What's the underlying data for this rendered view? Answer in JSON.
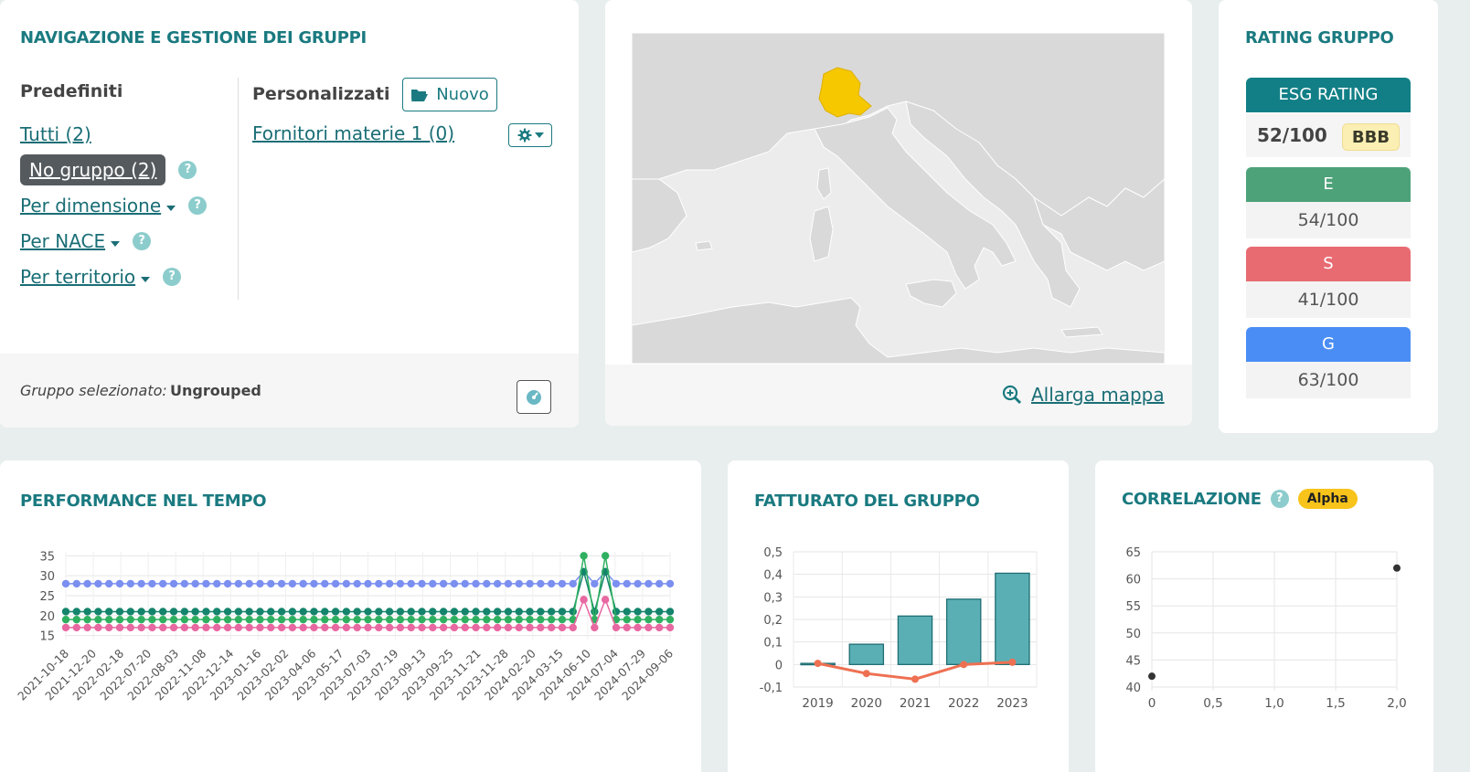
{
  "nav": {
    "title": "NAVIGAZIONE E GESTIONE DEI GRUPPI",
    "predefiniti_label": "Predefiniti",
    "personalizzati_label": "Personalizzati",
    "new_button_label": "Nuovo",
    "items": [
      {
        "label": "Tutti (2)"
      },
      {
        "label": "No gruppo (2)"
      },
      {
        "label": "Per dimensione"
      },
      {
        "label": "Per NACE"
      },
      {
        "label": "Per territorio"
      }
    ],
    "help_glyph": "?",
    "custom_groups": [
      {
        "label": "Fornitori materie 1 (0)"
      }
    ],
    "selected_group_label": "Gruppo selezionato:",
    "selected_group_value": "Ungrouped"
  },
  "map": {
    "expand_label": "Allarga mappa",
    "highlight_color": "#f5c800"
  },
  "rating": {
    "title": "RATING GRUPPO",
    "esg_label": "ESG RATING",
    "esg_score": "52/100",
    "esg_grade": "BBB",
    "pillars": [
      {
        "label": "E",
        "score": "54/100",
        "color": "#4ea27a"
      },
      {
        "label": "S",
        "score": "41/100",
        "color": "#e86b72"
      },
      {
        "label": "G",
        "score": "63/100",
        "color": "#4a8ef5"
      }
    ]
  },
  "performance": {
    "title": "PERFORMANCE NEL TEMPO"
  },
  "fatturato": {
    "title": "FATTURATO DEL GRUPPO"
  },
  "correlazione": {
    "title": "CORRELAZIONE",
    "badge": "Alpha"
  },
  "chart_data": [
    {
      "type": "line",
      "x_tick_labels": [
        "2021-10-18",
        "2021-12-20",
        "2022-02-18",
        "2022-07-20",
        "2022-08-03",
        "2022-11-08",
        "2022-12-14",
        "2023-01-16",
        "2023-02-02",
        "2023-04-06",
        "2023-05-17",
        "2023-07-03",
        "2023-07-19",
        "2023-09-13",
        "2023-09-25",
        "2023-11-21",
        "2023-11-28",
        "2024-02-20",
        "2024-03-15",
        "2024-06-10",
        "2024-07-04",
        "2024-07-29",
        "2024-09-06"
      ],
      "y_ticks": [
        15,
        20,
        25,
        30,
        35
      ],
      "ylim": [
        14,
        36
      ],
      "point_count": 57,
      "spike_indices": [
        48,
        50
      ],
      "series": [
        {
          "color": "#7b8ff0",
          "base": 28,
          "spikes": [
            31,
            31
          ]
        },
        {
          "color": "#14846c",
          "base": 21,
          "spikes": [
            31,
            31
          ]
        },
        {
          "color": "#2fb060",
          "base": 19,
          "spikes": [
            35,
            35
          ]
        },
        {
          "color": "#e868a2",
          "base": 17,
          "spikes": [
            24,
            24
          ]
        }
      ]
    },
    {
      "type": "bar",
      "categories": [
        "2019",
        "2020",
        "2021",
        "2022",
        "2023"
      ],
      "values": [
        0.005,
        0.09,
        0.215,
        0.29,
        0.405
      ],
      "line_values": [
        0.005,
        -0.04,
        -0.065,
        0.0,
        0.01
      ],
      "y_ticks": [
        "-0,1",
        "0",
        "0,1",
        "0,2",
        "0,3",
        "0,4",
        "0,5"
      ],
      "ylim": [
        -0.1,
        0.5
      ],
      "bar_color": "#5aafb5",
      "line_color": "#ee7052"
    },
    {
      "type": "scatter",
      "points": [
        {
          "x": 0,
          "y": 42
        },
        {
          "x": 2.0,
          "y": 62
        }
      ],
      "x_ticks": [
        "0",
        "0,5",
        "1,0",
        "1,5",
        "2,0"
      ],
      "y_ticks": [
        "40",
        "45",
        "50",
        "55",
        "60",
        "65"
      ],
      "xlim": [
        0,
        2
      ],
      "ylim": [
        40,
        65
      ]
    }
  ]
}
